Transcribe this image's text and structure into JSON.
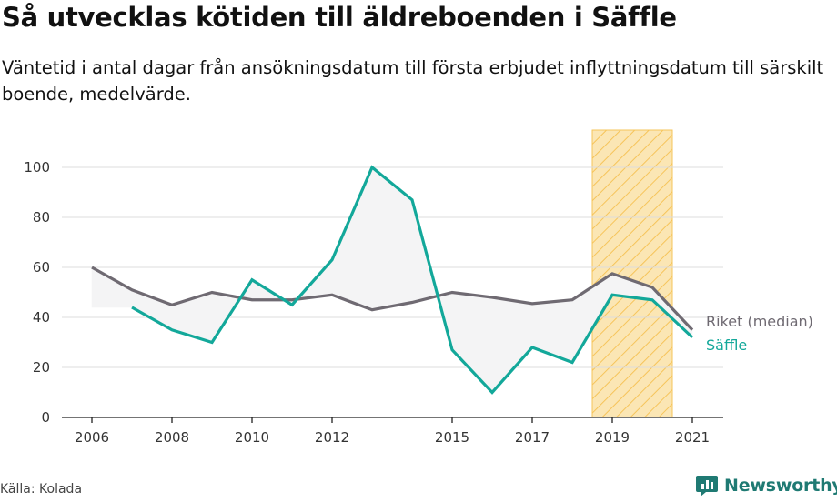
{
  "header": {
    "title": "Så utvecklas kötiden till äldreboenden i Säffle",
    "subtitle": "Väntetid i antal dagar från ansökningsdatum till första erbjudet inflyttningsdatum till särskilt boende, medelvärde."
  },
  "footer": {
    "source": "Källa: Kolada",
    "brand": "Newsworthy"
  },
  "colors": {
    "riket": "#6f6a72",
    "saffle": "#13a89a",
    "gap_fill": "#f4f4f5",
    "highlight_fill": "#fbe6b4",
    "highlight_stripe": "#f6c45a",
    "brand": "#1f7a73"
  },
  "chart_data": {
    "type": "line",
    "x": [
      2006,
      2007,
      2008,
      2009,
      2010,
      2011,
      2012,
      2013,
      2014,
      2015,
      2016,
      2017,
      2018,
      2019,
      2020,
      2021
    ],
    "x_ticks": [
      "2006",
      "2008",
      "2010",
      "2012",
      "2015",
      "2017",
      "2019",
      "2021"
    ],
    "y_ticks": [
      "0",
      "20",
      "40",
      "60",
      "80",
      "100"
    ],
    "xlim": [
      2006,
      2021
    ],
    "ylim": [
      0,
      100
    ],
    "grid": true,
    "highlight_range": [
      2018.5,
      2020.5
    ],
    "series": [
      {
        "name": "Riket (median)",
        "color": "#6f6a72",
        "values": [
          60,
          51,
          45,
          50,
          47,
          47,
          49,
          43,
          46,
          50,
          48,
          45.5,
          47,
          57.5,
          52,
          35
        ]
      },
      {
        "name": "Säffle",
        "color": "#13a89a",
        "values": [
          null,
          44,
          35,
          30,
          55,
          45,
          63,
          100,
          87,
          27,
          10,
          28,
          22,
          49,
          47,
          32
        ]
      }
    ]
  }
}
